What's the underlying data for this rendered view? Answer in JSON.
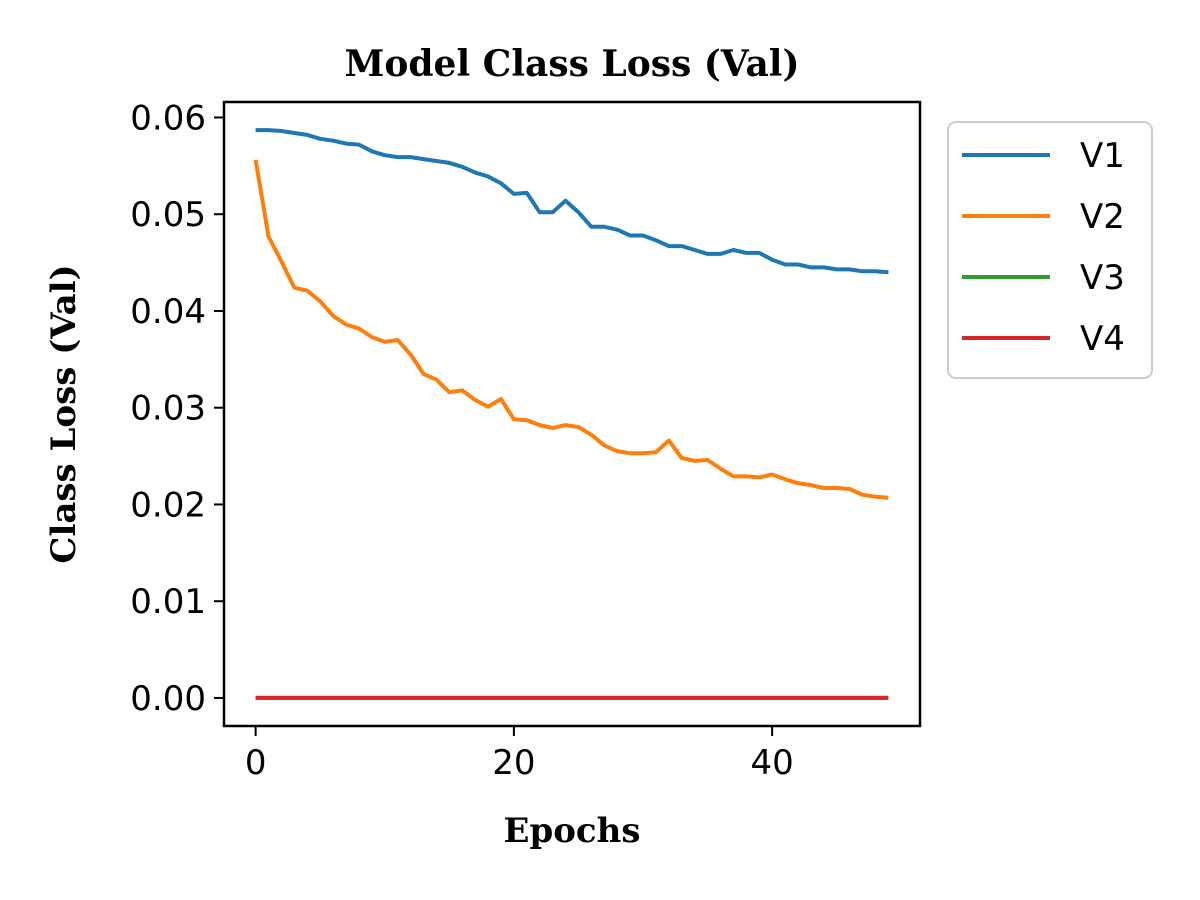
{
  "chart_data": {
    "type": "line",
    "title": "Model Class Loss (Val)",
    "xlabel": "Epochs",
    "ylabel": "Class Loss (Val)",
    "xlim": [
      -2.45,
      51.45
    ],
    "ylim": [
      -0.0029,
      0.0616
    ],
    "xticks": [
      0,
      20,
      40
    ],
    "xtick_labels": [
      "0",
      "20",
      "40"
    ],
    "yticks": [
      0.0,
      0.01,
      0.02,
      0.03,
      0.04,
      0.05,
      0.06
    ],
    "ytick_labels": [
      "0.00",
      "0.01",
      "0.02",
      "0.03",
      "0.04",
      "0.05",
      "0.06"
    ],
    "grid": false,
    "legend_position": "outside-right-top",
    "x": [
      0,
      1,
      2,
      3,
      4,
      5,
      6,
      7,
      8,
      9,
      10,
      11,
      12,
      13,
      14,
      15,
      16,
      17,
      18,
      19,
      20,
      21,
      22,
      23,
      24,
      25,
      26,
      27,
      28,
      29,
      30,
      31,
      32,
      33,
      34,
      35,
      36,
      37,
      38,
      39,
      40,
      41,
      42,
      43,
      44,
      45,
      46,
      47,
      48,
      49
    ],
    "series": [
      {
        "name": "V1",
        "color": "#1f77b4",
        "values": [
          0.0587,
          0.0587,
          0.0586,
          0.0584,
          0.0582,
          0.0578,
          0.0576,
          0.0573,
          0.0572,
          0.0565,
          0.0561,
          0.0559,
          0.0559,
          0.0557,
          0.0555,
          0.0553,
          0.0549,
          0.0543,
          0.0539,
          0.0532,
          0.0521,
          0.0522,
          0.0502,
          0.0502,
          0.0514,
          0.0502,
          0.0487,
          0.0487,
          0.0484,
          0.0478,
          0.0478,
          0.0473,
          0.0467,
          0.0467,
          0.0463,
          0.0459,
          0.0459,
          0.0463,
          0.046,
          0.046,
          0.0453,
          0.0448,
          0.0448,
          0.0445,
          0.0445,
          0.0443,
          0.0443,
          0.0441,
          0.0441,
          0.044
        ]
      },
      {
        "name": "V2",
        "color": "#ff7f0e",
        "values": [
          0.0556,
          0.0477,
          0.0451,
          0.0424,
          0.0421,
          0.041,
          0.0395,
          0.0386,
          0.0382,
          0.0373,
          0.0368,
          0.037,
          0.0355,
          0.0335,
          0.0329,
          0.0316,
          0.0318,
          0.0308,
          0.0301,
          0.0309,
          0.0288,
          0.0287,
          0.0282,
          0.0279,
          0.0282,
          0.028,
          0.0272,
          0.0261,
          0.0255,
          0.0253,
          0.0253,
          0.0254,
          0.0266,
          0.0248,
          0.0245,
          0.0246,
          0.0237,
          0.0229,
          0.0229,
          0.0228,
          0.0231,
          0.0226,
          0.0222,
          0.022,
          0.0217,
          0.0217,
          0.0216,
          0.021,
          0.0208,
          0.0207
        ]
      },
      {
        "name": "V3",
        "color": "#2ca02c",
        "values": [
          0,
          0,
          0,
          0,
          0,
          0,
          0,
          0,
          0,
          0,
          0,
          0,
          0,
          0,
          0,
          0,
          0,
          0,
          0,
          0,
          0,
          0,
          0,
          0,
          0,
          0,
          0,
          0,
          0,
          0,
          0,
          0,
          0,
          0,
          0,
          0,
          0,
          0,
          0,
          0,
          0,
          0,
          0,
          0,
          0,
          0,
          0,
          0,
          0,
          0
        ]
      },
      {
        "name": "V4",
        "color": "#d62728",
        "values": [
          0,
          0,
          0,
          0,
          0,
          0,
          0,
          0,
          0,
          0,
          0,
          0,
          0,
          0,
          0,
          0,
          0,
          0,
          0,
          0,
          0,
          0,
          0,
          0,
          0,
          0,
          0,
          0,
          0,
          0,
          0,
          0,
          0,
          0,
          0,
          0,
          0,
          0,
          0,
          0,
          0,
          0,
          0,
          0,
          0,
          0,
          0,
          0,
          0,
          0
        ]
      }
    ]
  }
}
